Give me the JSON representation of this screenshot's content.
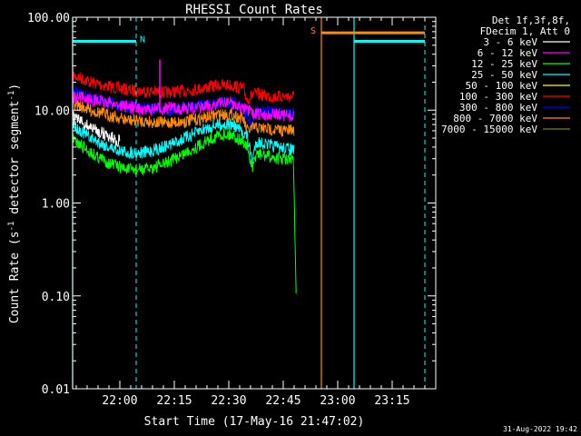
{
  "chart_data": {
    "type": "line",
    "title": "RHESSI Count Rates",
    "xlabel": "Start Time (17-May-16 21:47:02)",
    "ylabel_main": "Count Rate (s",
    "ylabel_sup": "-1",
    "ylabel_tail": " detector segment",
    "ylabel_sup2": "-1",
    "ylabel_close": ")",
    "y_scale": "log",
    "ylim": [
      0.01,
      100
    ],
    "xlim_minutes_after_start": [
      0,
      100
    ],
    "x_ticks": [
      {
        "label": "22:00",
        "minute": 13
      },
      {
        "label": "22:15",
        "minute": 28
      },
      {
        "label": "22:30",
        "minute": 43
      },
      {
        "label": "22:45",
        "minute": 58
      },
      {
        "label": "23:00",
        "minute": 73
      },
      {
        "label": "23:15",
        "minute": 88
      }
    ],
    "y_ticks": [
      {
        "label": "100.00",
        "value": 100
      },
      {
        "label": "10.00",
        "value": 10
      },
      {
        "label": "1.00",
        "value": 1
      },
      {
        "label": "0.10",
        "value": 0.1
      },
      {
        "label": "0.01",
        "value": 0.01
      }
    ],
    "info_lines": [
      "Det 1f,3f,8f,",
      "FDecim 1, Att 0"
    ],
    "series": [
      {
        "name": "3 - 6 keV",
        "color": "#ffffff",
        "points": [
          [
            0,
            8.5
          ],
          [
            5,
            6.5
          ],
          [
            10,
            5.2
          ],
          [
            13,
            4.6
          ]
        ]
      },
      {
        "name": "6 - 12 keV",
        "color": "#ff00ff",
        "points": [
          [
            0,
            14
          ],
          [
            10,
            12
          ],
          [
            20,
            10
          ],
          [
            26,
            10.5
          ],
          [
            35,
            10.5
          ],
          [
            43,
            12.5
          ],
          [
            50,
            9
          ],
          [
            56,
            9
          ],
          [
            61,
            8.5
          ]
        ]
      },
      {
        "name": "12 - 25 keV",
        "color": "#00ff00",
        "points": [
          [
            0,
            4.8
          ],
          [
            5,
            3.5
          ],
          [
            10,
            2.7
          ],
          [
            15,
            2.3
          ],
          [
            20,
            2.3
          ],
          [
            25,
            2.6
          ],
          [
            30,
            3.3
          ],
          [
            35,
            4.2
          ],
          [
            40,
            5.4
          ],
          [
            44,
            5.5
          ],
          [
            48,
            4.2
          ],
          [
            49.5,
            2.2
          ],
          [
            50.5,
            3.4
          ],
          [
            55,
            3.1
          ],
          [
            60,
            2.9
          ],
          [
            60.8,
            2.8
          ],
          [
            61.6,
            0.09
          ]
        ]
      },
      {
        "name": "25 - 50 keV",
        "color": "#00ffff",
        "points": [
          [
            0,
            7
          ],
          [
            5,
            5
          ],
          [
            10,
            4
          ],
          [
            15,
            3.5
          ],
          [
            20,
            3.5
          ],
          [
            25,
            4
          ],
          [
            30,
            4.8
          ],
          [
            35,
            6
          ],
          [
            40,
            7
          ],
          [
            44,
            7
          ],
          [
            48,
            5.3
          ],
          [
            49.5,
            2.8
          ],
          [
            50.5,
            4.6
          ],
          [
            55,
            4.1
          ],
          [
            60,
            3.8
          ],
          [
            61,
            3.7
          ]
        ]
      },
      {
        "name": "50 - 100 keV",
        "color": "#ffff00",
        "points": []
      },
      {
        "name": "100 - 300 keV",
        "color": "#ff0000",
        "points": [
          [
            0,
            24
          ],
          [
            5,
            20
          ],
          [
            10,
            18
          ],
          [
            15,
            16.5
          ],
          [
            20,
            16
          ],
          [
            25,
            15.5
          ],
          [
            30,
            16
          ],
          [
            35,
            17
          ],
          [
            40,
            18.5
          ],
          [
            44,
            18.5
          ],
          [
            47,
            17
          ],
          [
            48,
            13
          ],
          [
            50,
            15
          ],
          [
            55,
            14
          ],
          [
            60,
            14
          ],
          [
            61,
            14
          ]
        ]
      },
      {
        "name": "300 - 800 keV",
        "color": "#0000ff",
        "points": [
          [
            0,
            16
          ],
          [
            5,
            13.5
          ],
          [
            10,
            12
          ],
          [
            15,
            11
          ],
          [
            20,
            10.5
          ],
          [
            25,
            10
          ],
          [
            30,
            10.3
          ],
          [
            35,
            11
          ],
          [
            40,
            12
          ],
          [
            44,
            12
          ],
          [
            47,
            10.8
          ],
          [
            48,
            8.5
          ],
          [
            49.5,
            7
          ],
          [
            50.5,
            10
          ],
          [
            55,
            9.5
          ],
          [
            60,
            9.2
          ],
          [
            61,
            9.2
          ]
        ]
      },
      {
        "name": "800 - 7000 keV",
        "color": "#ff8c00",
        "points": [
          [
            0,
            12
          ],
          [
            5,
            10
          ],
          [
            10,
            8.8
          ],
          [
            15,
            7.8
          ],
          [
            20,
            7.6
          ],
          [
            25,
            7.3
          ],
          [
            30,
            7.5
          ],
          [
            35,
            8
          ],
          [
            40,
            9
          ],
          [
            44,
            9
          ],
          [
            47,
            8
          ],
          [
            48,
            6
          ],
          [
            50,
            6.5
          ],
          [
            55,
            6.2
          ],
          [
            60,
            6
          ],
          [
            61,
            6
          ]
        ]
      },
      {
        "name": "7000 - 15000 keV",
        "color": "#808000",
        "points": []
      }
    ],
    "attenuator_periods": [
      {
        "label": "N",
        "color": "#00ffff",
        "start_minute": 0,
        "end_minute": 17.5,
        "value": 55
      },
      {
        "label": "S",
        "color": "#ff8c00",
        "start_minute": 68.5,
        "end_minute": 97,
        "value": 68
      },
      {
        "label": "",
        "color": "#00ffff",
        "start_minute": 77.5,
        "end_minute": 97,
        "value": 55
      }
    ],
    "footer_date": "31-Aug-2022 19:42"
  }
}
